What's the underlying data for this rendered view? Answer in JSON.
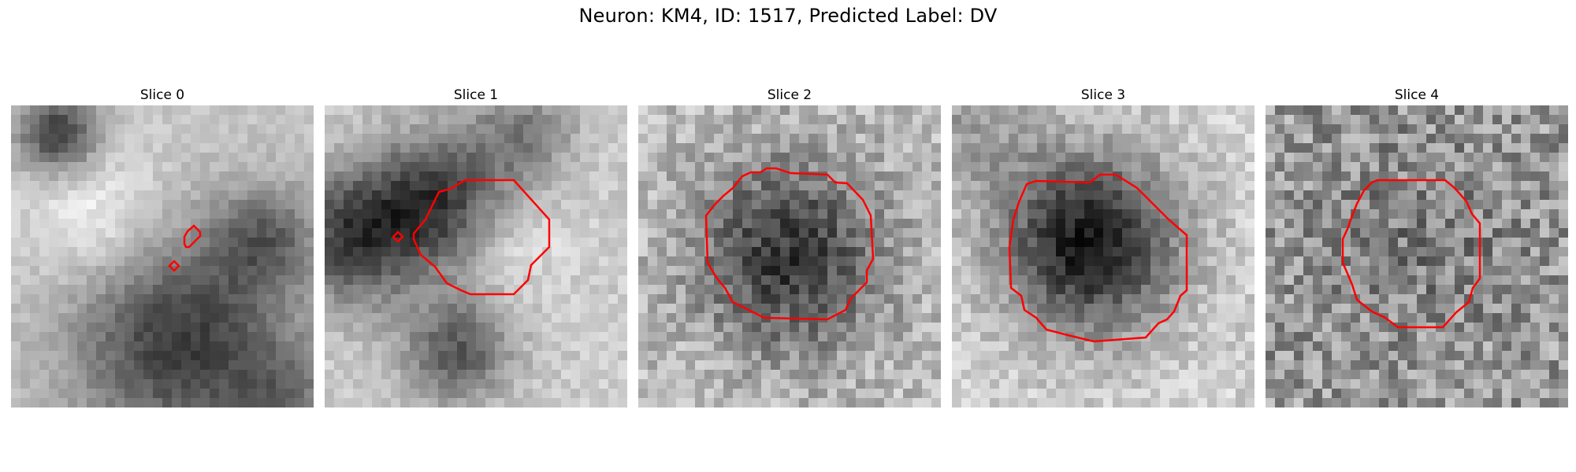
{
  "figure": {
    "title": "Neuron: KM4, ID: 1517, Predicted Label: DV"
  },
  "panels": [
    {
      "title": "Slice 0"
    },
    {
      "title": "Slice 1"
    },
    {
      "title": "Slice 2"
    },
    {
      "title": "Slice 3"
    },
    {
      "title": "Slice 4"
    }
  ],
  "style": {
    "contour_color": "#ff0000",
    "colormap": "grayscale"
  }
}
